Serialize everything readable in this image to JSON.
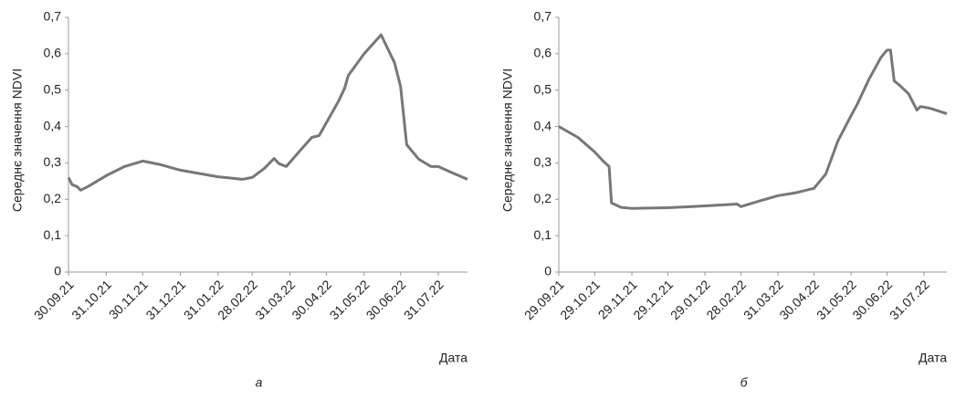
{
  "chart_data": [
    {
      "type": "line",
      "caption": "а",
      "xlabel": "Дата",
      "ylabel": "Середнє значення NDVI",
      "color": "#777777",
      "x": [
        "30.09.21",
        "03.10.21",
        "07.10.21",
        "10.10.21",
        "16.10.21",
        "31.10.21",
        "15.11.21",
        "30.11.21",
        "15.12.21",
        "31.12.21",
        "31.01.22",
        "20.02.22",
        "28.02.22",
        "10.03.22",
        "18.03.22",
        "22.03.22",
        "28.03.22",
        "10.04.22",
        "18.04.22",
        "24.04.22",
        "10.05.22",
        "15.05.22",
        "18.05.22",
        "31.05.22",
        "14.06.22",
        "20.06.22",
        "25.06.22",
        "30.06.22",
        "05.07.22",
        "15.07.22",
        "25.07.22",
        "31.07.22",
        "10.08.22",
        "24.08.22"
      ],
      "values": [
        0.26,
        0.24,
        0.235,
        0.225,
        0.235,
        0.265,
        0.29,
        0.305,
        0.295,
        0.28,
        0.262,
        0.255,
        0.26,
        0.285,
        0.312,
        0.298,
        0.29,
        0.34,
        0.37,
        0.375,
        0.47,
        0.505,
        0.54,
        0.6,
        0.652,
        0.61,
        0.575,
        0.51,
        0.35,
        0.31,
        0.29,
        0.29,
        0.275,
        0.255
      ],
      "xlim": [
        "30.09.21",
        "24.08.22"
      ],
      "xticks": [
        "30.09.21",
        "31.10.21",
        "30.11.21",
        "31.12.21",
        "31.01.22",
        "28.02.22",
        "31.03.22",
        "30.04.22",
        "31.05.22",
        "30.06.22",
        "31.07.22"
      ],
      "ylim": [
        0,
        0.7
      ],
      "yticks": [
        0,
        {
          "value": 0.1,
          "label": "0,1"
        },
        {
          "value": 0.2,
          "label": "0,2"
        },
        {
          "value": 0.3,
          "label": "0,3"
        },
        {
          "value": 0.4,
          "label": "0,4"
        },
        {
          "value": 0.5,
          "label": "0,5"
        },
        {
          "value": 0.6,
          "label": "0,6"
        },
        {
          "value": 0.7,
          "label": "0,7"
        }
      ]
    },
    {
      "type": "line",
      "caption": "б",
      "xlabel": "Дата",
      "ylabel": "Середнє значення NDVI",
      "color": "#777777",
      "x": [
        "29.09.21",
        "15.10.21",
        "29.10.21",
        "05.11.21",
        "10.11.21",
        "12.11.21",
        "20.11.21",
        "29.11.21",
        "29.12.21",
        "29.01.22",
        "25.02.22",
        "28.02.22",
        "15.03.22",
        "31.03.22",
        "15.04.22",
        "30.04.22",
        "10.05.22",
        "20.05.22",
        "31.05.22",
        "05.06.22",
        "15.06.22",
        "25.06.22",
        "30.06.22",
        "03.07.22",
        "06.07.22",
        "10.07.22",
        "18.07.22",
        "25.07.22",
        "28.07.22",
        "05.08.22",
        "19.08.22"
      ],
      "values": [
        0.4,
        0.37,
        0.33,
        0.305,
        0.29,
        0.19,
        0.178,
        0.175,
        0.177,
        0.182,
        0.187,
        0.18,
        0.195,
        0.21,
        0.218,
        0.23,
        0.27,
        0.36,
        0.43,
        0.46,
        0.53,
        0.59,
        0.61,
        0.61,
        0.525,
        0.515,
        0.49,
        0.445,
        0.455,
        0.45,
        0.435
      ],
      "xlim": [
        "29.09.21",
        "19.08.22"
      ],
      "xticks": [
        "29.09.21",
        "29.10.21",
        "29.11.21",
        "29.12.21",
        "29.01.22",
        "28.02.22",
        "31.03.22",
        "30.04.22",
        "31.05.22",
        "30.06.22",
        "31.07.22"
      ],
      "ylim": [
        0,
        0.7
      ],
      "yticks": [
        0,
        {
          "value": 0.1,
          "label": "0,1"
        },
        {
          "value": 0.2,
          "label": "0,2"
        },
        {
          "value": 0.3,
          "label": "0,3"
        },
        {
          "value": 0.4,
          "label": "0,4"
        },
        {
          "value": 0.5,
          "label": "0,5"
        },
        {
          "value": 0.6,
          "label": "0,6"
        },
        {
          "value": 0.7,
          "label": "0,7"
        }
      ]
    }
  ]
}
